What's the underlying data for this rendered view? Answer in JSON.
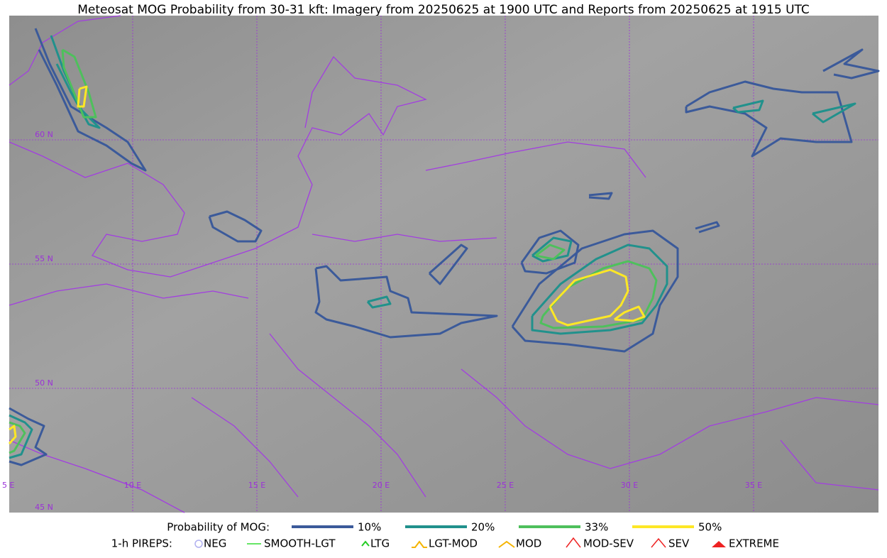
{
  "header": {
    "title": "Meteosat MOG Probability from 30-31 kft: Imagery from 20250625 at 1900 UTC and Reports from 20250625 at 1915 UTC"
  },
  "map": {
    "lat_labels": [
      "60 N",
      "55 N",
      "50 N",
      "45 N"
    ],
    "lon_labels": [
      "5 E",
      "10 E",
      "15 E",
      "20 E",
      "25 E",
      "30 E",
      "35 E"
    ]
  },
  "legend": {
    "title": "Probability of MOG:",
    "levels": [
      {
        "label": "10%",
        "color": "#3b5a9a"
      },
      {
        "label": "20%",
        "color": "#21918c"
      },
      {
        "label": "33%",
        "color": "#4ec05c"
      },
      {
        "label": "50%",
        "color": "#fde725"
      }
    ]
  },
  "pireps": {
    "title": "1-h PIREPS:",
    "items": [
      {
        "label": "NEG",
        "color": "#b0b0f0"
      },
      {
        "label": "SMOOTH-LGT",
        "color": "#33dd33"
      },
      {
        "label": "LTG",
        "color": "#22cc22"
      },
      {
        "label": "LGT-MOD",
        "color": "#f5b400"
      },
      {
        "label": "MOD",
        "color": "#f5b400"
      },
      {
        "label": "MOD-SEV",
        "color": "#ee2222"
      },
      {
        "label": "SEV",
        "color": "#ee2222"
      },
      {
        "label": "EXTREME",
        "color": "#ee2222"
      }
    ]
  }
}
